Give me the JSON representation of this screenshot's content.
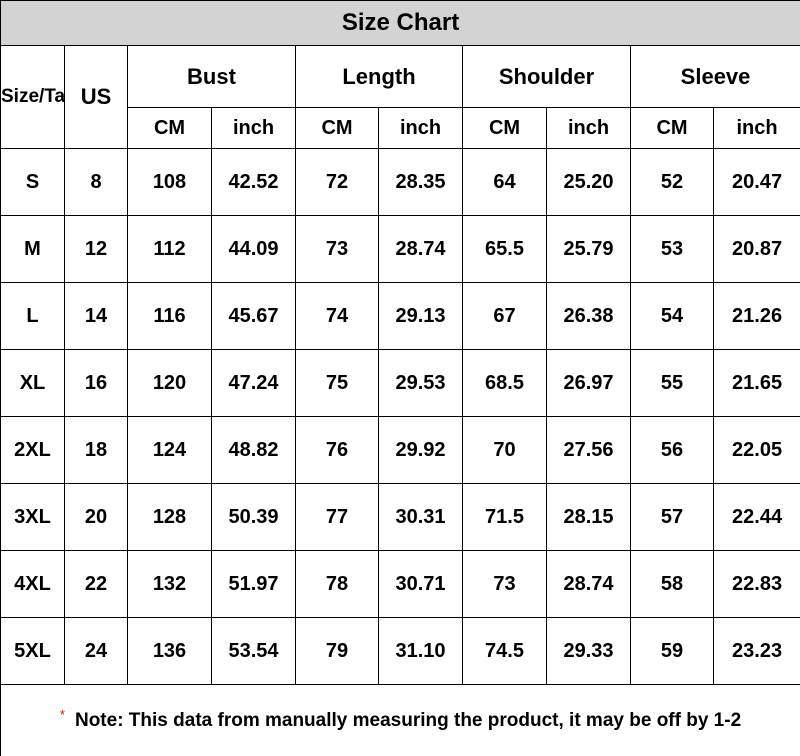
{
  "title": "Size Chart",
  "table": {
    "groups": [
      {
        "label": "Size/Ta"
      },
      {
        "label": "US"
      },
      {
        "label": "Bust"
      },
      {
        "label": "Length"
      },
      {
        "label": "Shoulder"
      },
      {
        "label": "Sleeve"
      }
    ],
    "sub_headers": [
      "CM",
      "inch",
      "CM",
      "inch",
      "CM",
      "inch",
      "CM",
      "inch"
    ],
    "rows": [
      [
        "S",
        "8",
        "108",
        "42.52",
        "72",
        "28.35",
        "64",
        "25.20",
        "52",
        "20.47"
      ],
      [
        "M",
        "12",
        "112",
        "44.09",
        "73",
        "28.74",
        "65.5",
        "25.79",
        "53",
        "20.87"
      ],
      [
        "L",
        "14",
        "116",
        "45.67",
        "74",
        "29.13",
        "67",
        "26.38",
        "54",
        "21.26"
      ],
      [
        "XL",
        "16",
        "120",
        "47.24",
        "75",
        "29.53",
        "68.5",
        "26.97",
        "55",
        "21.65"
      ],
      [
        "2XL",
        "18",
        "124",
        "48.82",
        "76",
        "29.92",
        "70",
        "27.56",
        "56",
        "22.05"
      ],
      [
        "3XL",
        "20",
        "128",
        "50.39",
        "77",
        "30.31",
        "71.5",
        "28.15",
        "57",
        "22.44"
      ],
      [
        "4XL",
        "22",
        "132",
        "51.97",
        "78",
        "30.71",
        "73",
        "28.74",
        "58",
        "22.83"
      ],
      [
        "5XL",
        "24",
        "136",
        "53.54",
        "79",
        "31.10",
        "74.5",
        "29.33",
        "59",
        "23.23"
      ]
    ]
  },
  "note": {
    "symbol": "*",
    "text": "Note: This data from manually measuring the product, it may be off by 1-2"
  },
  "colors": {
    "title_bg": "#d3d3d3",
    "border": "#000000",
    "note_asterisk": "#ff0000",
    "text": "#000000"
  },
  "chart_data": {
    "type": "table",
    "title": "Size Chart",
    "columns": [
      "Size/Ta",
      "US",
      "Bust CM",
      "Bust inch",
      "Length CM",
      "Length inch",
      "Shoulder CM",
      "Shoulder inch",
      "Sleeve CM",
      "Sleeve inch"
    ],
    "rows": [
      [
        "S",
        8,
        108,
        42.52,
        72,
        28.35,
        64,
        25.2,
        52,
        20.47
      ],
      [
        "M",
        12,
        112,
        44.09,
        73,
        28.74,
        65.5,
        25.79,
        53,
        20.87
      ],
      [
        "L",
        14,
        116,
        45.67,
        74,
        29.13,
        67,
        26.38,
        54,
        21.26
      ],
      [
        "XL",
        16,
        120,
        47.24,
        75,
        29.53,
        68.5,
        26.97,
        55,
        21.65
      ],
      [
        "2XL",
        18,
        124,
        48.82,
        76,
        29.92,
        70,
        27.56,
        56,
        22.05
      ],
      [
        "3XL",
        20,
        128,
        50.39,
        77,
        30.31,
        71.5,
        28.15,
        57,
        22.44
      ],
      [
        "4XL",
        22,
        132,
        51.97,
        78,
        30.71,
        73,
        28.74,
        58,
        22.83
      ],
      [
        "5XL",
        24,
        136,
        53.54,
        79,
        31.1,
        74.5,
        29.33,
        59,
        23.23
      ]
    ],
    "footnote": "Note: This data from manually measuring the product, it may be off by 1-2"
  }
}
